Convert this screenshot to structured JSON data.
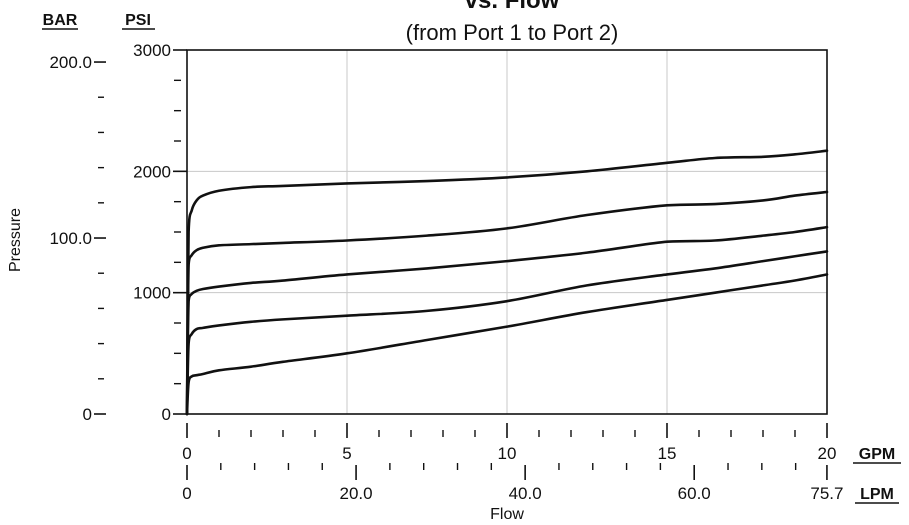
{
  "chart_data": {
    "type": "line",
    "title": "vs. Flow",
    "subtitle": "(from Port 1 to Port 2)",
    "ylabel": "Pressure",
    "xlabel": "Flow",
    "units": {
      "bar": "BAR",
      "psi": "PSI",
      "gpm": "GPM",
      "lpm": "LPM"
    },
    "xlim": [
      0,
      20
    ],
    "ylim": [
      0,
      3000
    ],
    "grid": true,
    "x_ticks_gpm": [
      {
        "value": 0,
        "label": "0"
      },
      {
        "value": 5,
        "label": "5"
      },
      {
        "value": 10,
        "label": "10"
      },
      {
        "value": 15,
        "label": "15"
      },
      {
        "value": 20,
        "label": "20"
      }
    ],
    "x_ticks_lpm": [
      {
        "value": 0,
        "label": "0"
      },
      {
        "value": 20.0,
        "label": "20.0"
      },
      {
        "value": 40.0,
        "label": "40.0"
      },
      {
        "value": 60.0,
        "label": "60.0"
      },
      {
        "value": 75.7,
        "label": "75.7"
      }
    ],
    "y_ticks_psi": [
      {
        "value": 0,
        "label": "0"
      },
      {
        "value": 1000,
        "label": "1000"
      },
      {
        "value": 2000,
        "label": "2000"
      },
      {
        "value": 3000,
        "label": "3000"
      }
    ],
    "y_ticks_bar": [
      {
        "value": 0,
        "label": "0"
      },
      {
        "value": 100.0,
        "label": "100.0"
      },
      {
        "value": 200.0,
        "label": "200.0"
      }
    ],
    "series": [
      {
        "x": [
          0,
          0.05,
          0.15,
          0.3,
          0.5,
          1,
          2,
          3,
          5,
          7.5,
          10,
          12.5,
          15,
          16.5,
          18,
          19,
          20
        ],
        "values": [
          0,
          1500,
          1680,
          1760,
          1800,
          1840,
          1870,
          1880,
          1900,
          1920,
          1950,
          2000,
          2070,
          2110,
          2120,
          2140,
          2170
        ]
      },
      {
        "x": [
          0,
          0.05,
          0.15,
          0.3,
          0.5,
          1,
          2,
          3,
          5,
          7.5,
          10,
          12.5,
          15,
          16.5,
          18,
          19,
          20
        ],
        "values": [
          0,
          1230,
          1310,
          1350,
          1370,
          1390,
          1400,
          1410,
          1430,
          1470,
          1530,
          1640,
          1720,
          1730,
          1760,
          1800,
          1830
        ]
      },
      {
        "x": [
          0,
          0.05,
          0.15,
          0.3,
          0.5,
          1,
          2,
          3,
          5,
          7.5,
          10,
          12.5,
          15,
          16.5,
          18,
          19,
          20
        ],
        "values": [
          0,
          930,
          990,
          1015,
          1030,
          1050,
          1080,
          1100,
          1150,
          1200,
          1260,
          1330,
          1420,
          1430,
          1470,
          1500,
          1540
        ]
      },
      {
        "x": [
          0,
          0.05,
          0.15,
          0.3,
          0.5,
          1,
          2,
          3,
          5,
          7.5,
          10,
          12.5,
          15,
          16.5,
          18,
          19,
          20
        ],
        "values": [
          0,
          580,
          660,
          700,
          710,
          730,
          760,
          780,
          810,
          850,
          930,
          1060,
          1150,
          1200,
          1260,
          1300,
          1340
        ]
      },
      {
        "x": [
          0,
          0.05,
          0.15,
          0.3,
          0.5,
          1,
          2,
          3,
          5,
          7.5,
          10,
          12.5,
          15,
          16.5,
          18,
          19,
          20
        ],
        "values": [
          0,
          260,
          310,
          320,
          330,
          360,
          390,
          430,
          500,
          610,
          720,
          840,
          940,
          1000,
          1060,
          1100,
          1150
        ]
      }
    ]
  }
}
